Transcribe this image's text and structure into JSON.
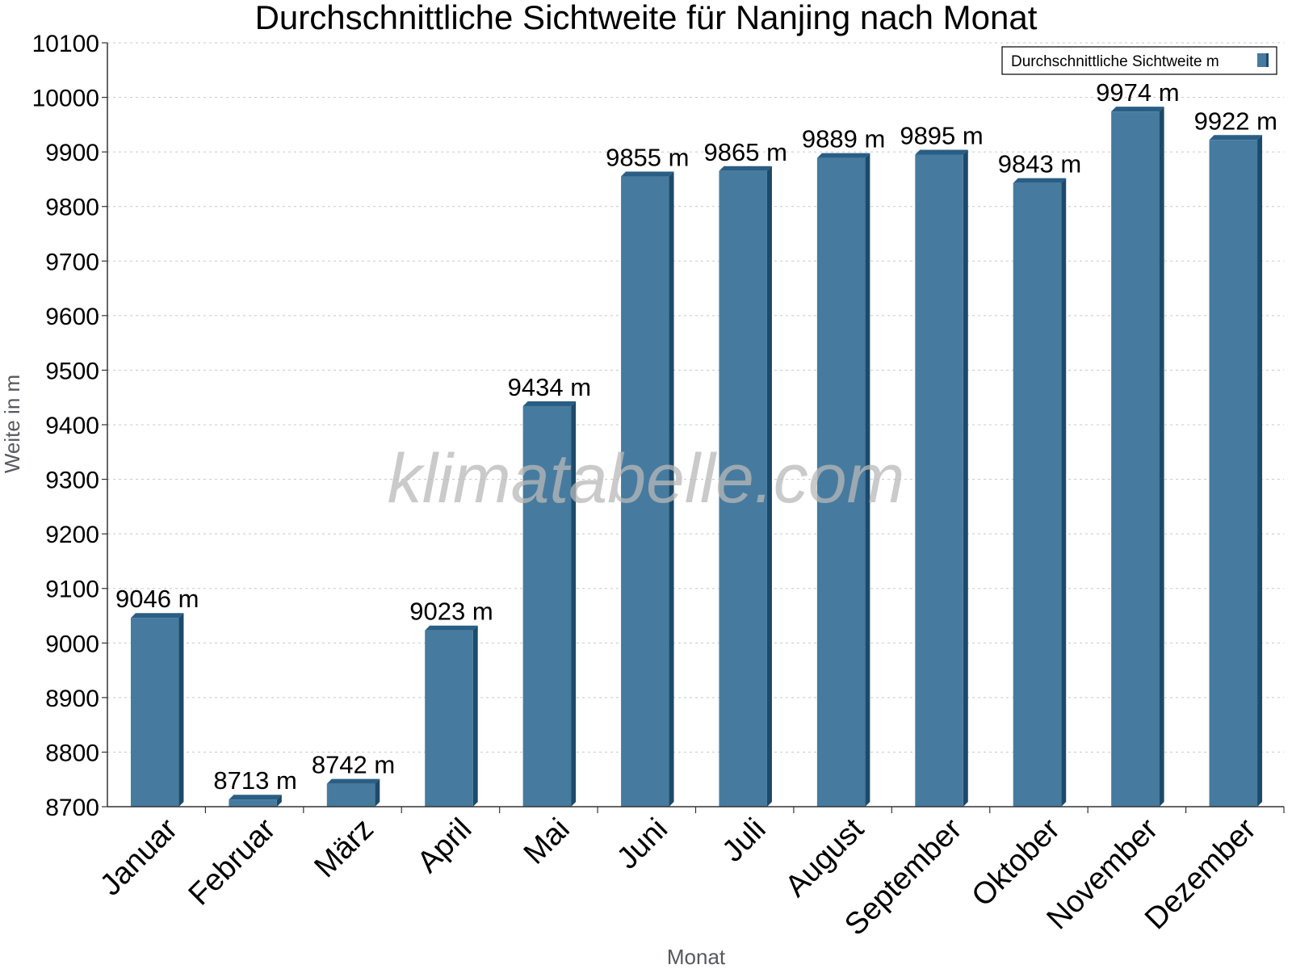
{
  "chart_data": {
    "type": "bar",
    "title": "Durchschnittliche Sichtweite für Nanjing nach Monat",
    "xlabel": "Monat",
    "ylabel": "Weite in m",
    "categories": [
      "Januar",
      "Februar",
      "März",
      "April",
      "Mai",
      "Juni",
      "Juli",
      "August",
      "September",
      "Oktober",
      "November",
      "Dezember"
    ],
    "series": [
      {
        "name": "Durchschnittliche Sichtweite m",
        "values": [
          9046,
          8713,
          8742,
          9023,
          9434,
          9855,
          9865,
          9889,
          9895,
          9843,
          9974,
          9922
        ],
        "value_labels": [
          "9046 m",
          "8713 m",
          "8742 m",
          "9023 m",
          "9434 m",
          "9855 m",
          "9865 m",
          "9889 m",
          "9895 m",
          "9843 m",
          "9974 m",
          "9922 m"
        ]
      }
    ],
    "ylim": [
      8700,
      10100
    ],
    "yticks": [
      8700,
      8800,
      8900,
      9000,
      9100,
      9200,
      9300,
      9400,
      9500,
      9600,
      9700,
      9800,
      9900,
      10000,
      10100
    ],
    "grid": true,
    "legend_position": "top-right",
    "watermark": "klimatabelle.com",
    "colors": {
      "bar_front": "#467b9f",
      "bar_side": "#1d4a6b",
      "bar_top": "#2a5e84"
    }
  }
}
